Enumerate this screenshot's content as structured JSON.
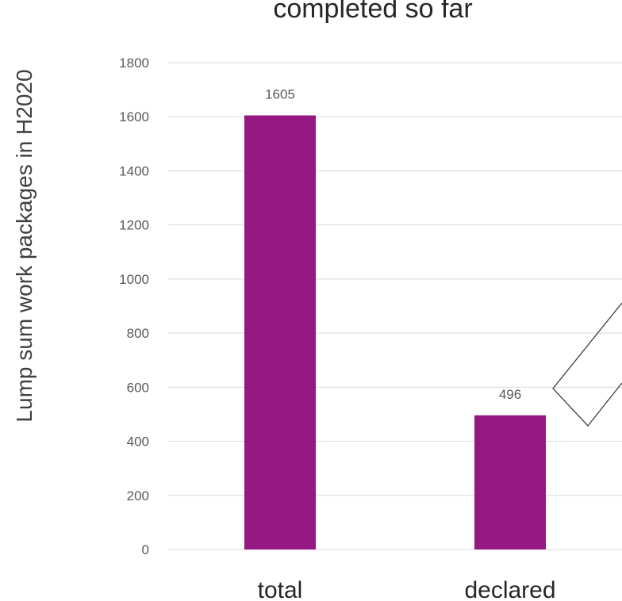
{
  "chart_data": {
    "type": "bar",
    "title": "completed so far",
    "xlabel": "",
    "ylabel": "Lump sum work packages in H2020",
    "ylim": [
      0,
      1800
    ],
    "yticks": [
      0,
      200,
      400,
      600,
      800,
      1000,
      1200,
      1400,
      1600,
      1800
    ],
    "categories": [
      "total",
      "declared"
    ],
    "values": [
      1605,
      496
    ],
    "data_labels": [
      "1605",
      "496"
    ],
    "grid": true,
    "legend": "none",
    "bar_color": "#951781"
  }
}
